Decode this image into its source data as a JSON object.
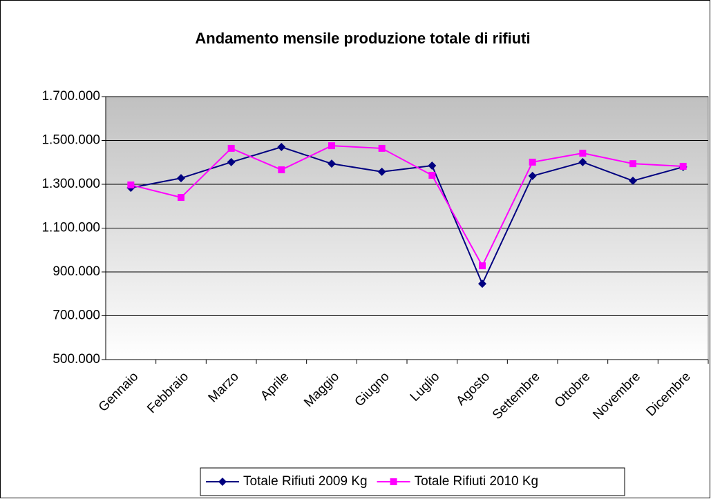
{
  "chart_data": {
    "type": "line",
    "title": "Andamento mensile produzione totale di rifiuti",
    "categories": [
      "Gennaio",
      "Febbraio",
      "Marzo",
      "Aprile",
      "Maggio",
      "Giugno",
      "Luglio",
      "Agosto",
      "Settembre",
      "Ottobre",
      "Novembre",
      "Dicembre"
    ],
    "series": [
      {
        "name": "Totale Rifiuti 2009 Kg",
        "color": "#000080",
        "marker": "diamond",
        "values": [
          1284000,
          1328000,
          1401000,
          1470000,
          1394000,
          1357000,
          1385000,
          846000,
          1338000,
          1401000,
          1316000,
          1379000
        ]
      },
      {
        "name": "Totale Rifiuti 2010 Kg",
        "color": "#ff00ff",
        "marker": "square",
        "values": [
          1297000,
          1240000,
          1464000,
          1366000,
          1476000,
          1464000,
          1341000,
          928000,
          1401000,
          1442000,
          1394000,
          1382000
        ]
      }
    ],
    "ylim": [
      500000,
      1700000
    ],
    "yticks": [
      {
        "value": 500000,
        "label": "500.000"
      },
      {
        "value": 700000,
        "label": "700.000"
      },
      {
        "value": 900000,
        "label": "900.000"
      },
      {
        "value": 1100000,
        "label": "1.100.000"
      },
      {
        "value": 1300000,
        "label": "1.300.000"
      },
      {
        "value": 1500000,
        "label": "1.500.000"
      },
      {
        "value": 1700000,
        "label": "1.700.000"
      }
    ],
    "grid": true,
    "legend": "bottom"
  }
}
